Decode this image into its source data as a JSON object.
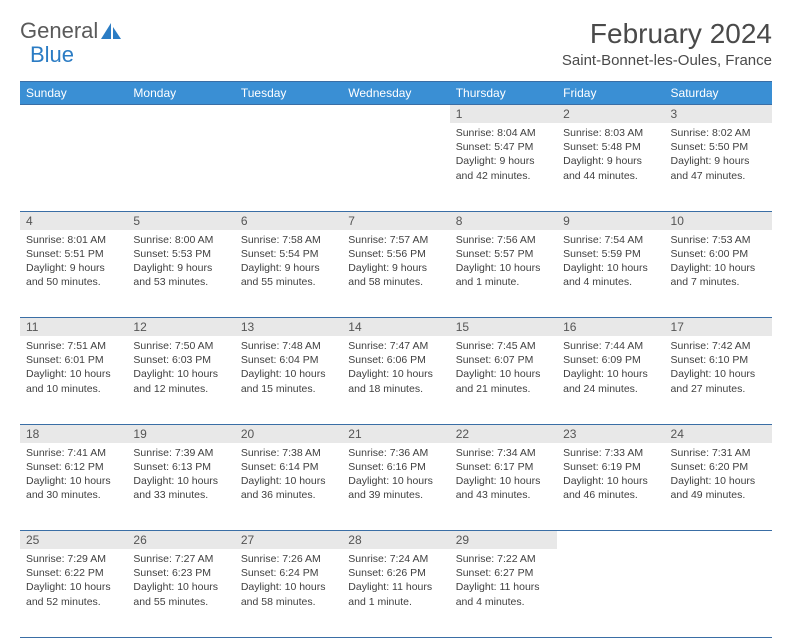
{
  "logo": {
    "text1": "General",
    "text2": "Blue",
    "icon_color": "#2b7cc4",
    "text1_color": "#5a5a5a"
  },
  "title": "February 2024",
  "location": "Saint-Bonnet-les-Oules, France",
  "header_bg": "#3a8fd4",
  "header_fg": "#ffffff",
  "border_color": "#3a6ea5",
  "daynum_bg": "#e8e8e8",
  "daynames": [
    "Sunday",
    "Monday",
    "Tuesday",
    "Wednesday",
    "Thursday",
    "Friday",
    "Saturday"
  ],
  "weeks": [
    [
      null,
      null,
      null,
      null,
      {
        "d": "1",
        "sr": "8:04 AM",
        "ss": "5:47 PM",
        "dl": "9 hours and 42 minutes."
      },
      {
        "d": "2",
        "sr": "8:03 AM",
        "ss": "5:48 PM",
        "dl": "9 hours and 44 minutes."
      },
      {
        "d": "3",
        "sr": "8:02 AM",
        "ss": "5:50 PM",
        "dl": "9 hours and 47 minutes."
      }
    ],
    [
      {
        "d": "4",
        "sr": "8:01 AM",
        "ss": "5:51 PM",
        "dl": "9 hours and 50 minutes."
      },
      {
        "d": "5",
        "sr": "8:00 AM",
        "ss": "5:53 PM",
        "dl": "9 hours and 53 minutes."
      },
      {
        "d": "6",
        "sr": "7:58 AM",
        "ss": "5:54 PM",
        "dl": "9 hours and 55 minutes."
      },
      {
        "d": "7",
        "sr": "7:57 AM",
        "ss": "5:56 PM",
        "dl": "9 hours and 58 minutes."
      },
      {
        "d": "8",
        "sr": "7:56 AM",
        "ss": "5:57 PM",
        "dl": "10 hours and 1 minute."
      },
      {
        "d": "9",
        "sr": "7:54 AM",
        "ss": "5:59 PM",
        "dl": "10 hours and 4 minutes."
      },
      {
        "d": "10",
        "sr": "7:53 AM",
        "ss": "6:00 PM",
        "dl": "10 hours and 7 minutes."
      }
    ],
    [
      {
        "d": "11",
        "sr": "7:51 AM",
        "ss": "6:01 PM",
        "dl": "10 hours and 10 minutes."
      },
      {
        "d": "12",
        "sr": "7:50 AM",
        "ss": "6:03 PM",
        "dl": "10 hours and 12 minutes."
      },
      {
        "d": "13",
        "sr": "7:48 AM",
        "ss": "6:04 PM",
        "dl": "10 hours and 15 minutes."
      },
      {
        "d": "14",
        "sr": "7:47 AM",
        "ss": "6:06 PM",
        "dl": "10 hours and 18 minutes."
      },
      {
        "d": "15",
        "sr": "7:45 AM",
        "ss": "6:07 PM",
        "dl": "10 hours and 21 minutes."
      },
      {
        "d": "16",
        "sr": "7:44 AM",
        "ss": "6:09 PM",
        "dl": "10 hours and 24 minutes."
      },
      {
        "d": "17",
        "sr": "7:42 AM",
        "ss": "6:10 PM",
        "dl": "10 hours and 27 minutes."
      }
    ],
    [
      {
        "d": "18",
        "sr": "7:41 AM",
        "ss": "6:12 PM",
        "dl": "10 hours and 30 minutes."
      },
      {
        "d": "19",
        "sr": "7:39 AM",
        "ss": "6:13 PM",
        "dl": "10 hours and 33 minutes."
      },
      {
        "d": "20",
        "sr": "7:38 AM",
        "ss": "6:14 PM",
        "dl": "10 hours and 36 minutes."
      },
      {
        "d": "21",
        "sr": "7:36 AM",
        "ss": "6:16 PM",
        "dl": "10 hours and 39 minutes."
      },
      {
        "d": "22",
        "sr": "7:34 AM",
        "ss": "6:17 PM",
        "dl": "10 hours and 43 minutes."
      },
      {
        "d": "23",
        "sr": "7:33 AM",
        "ss": "6:19 PM",
        "dl": "10 hours and 46 minutes."
      },
      {
        "d": "24",
        "sr": "7:31 AM",
        "ss": "6:20 PM",
        "dl": "10 hours and 49 minutes."
      }
    ],
    [
      {
        "d": "25",
        "sr": "7:29 AM",
        "ss": "6:22 PM",
        "dl": "10 hours and 52 minutes."
      },
      {
        "d": "26",
        "sr": "7:27 AM",
        "ss": "6:23 PM",
        "dl": "10 hours and 55 minutes."
      },
      {
        "d": "27",
        "sr": "7:26 AM",
        "ss": "6:24 PM",
        "dl": "10 hours and 58 minutes."
      },
      {
        "d": "28",
        "sr": "7:24 AM",
        "ss": "6:26 PM",
        "dl": "11 hours and 1 minute."
      },
      {
        "d": "29",
        "sr": "7:22 AM",
        "ss": "6:27 PM",
        "dl": "11 hours and 4 minutes."
      },
      null,
      null
    ]
  ],
  "labels": {
    "sunrise": "Sunrise: ",
    "sunset": "Sunset: ",
    "daylight": "Daylight: "
  }
}
